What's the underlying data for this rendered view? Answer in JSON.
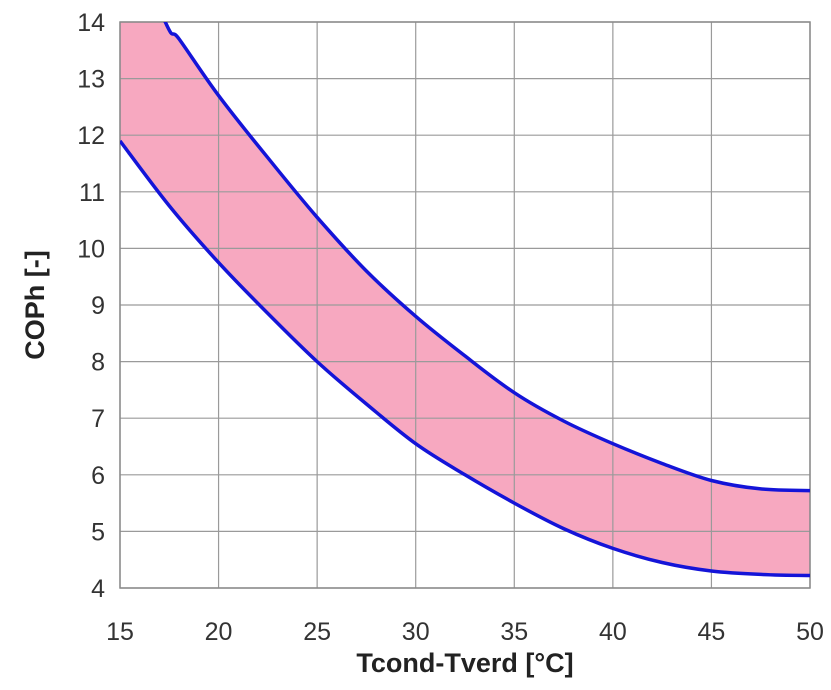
{
  "chart_data": {
    "type": "area",
    "title": "",
    "xlabel": "Tcond-Tverd [°C]",
    "ylabel": "COPh [-]",
    "xlim": [
      15,
      50
    ],
    "ylim": [
      4,
      14
    ],
    "xticks": [
      15,
      20,
      25,
      30,
      35,
      40,
      45,
      50
    ],
    "yticks": [
      4,
      5,
      6,
      7,
      8,
      9,
      10,
      11,
      12,
      13,
      14
    ],
    "grid": true,
    "legend": "none",
    "colors": {
      "band_fill": "#f7a8c0",
      "boundary_line": "#1414d8",
      "grid": "#9a9a9a"
    },
    "series": [
      {
        "x": [
          15,
          17.3,
          18,
          20,
          22.5,
          25,
          27.5,
          30,
          32.5,
          35,
          37.5,
          40,
          42.5,
          45,
          47.5,
          50
        ],
        "values": [
          16.0,
          14.0,
          13.7,
          12.7,
          11.6,
          10.55,
          9.6,
          8.8,
          8.1,
          7.45,
          6.95,
          6.55,
          6.2,
          5.9,
          5.75,
          5.72
        ]
      },
      {
        "x": [
          15,
          17.5,
          20,
          22.5,
          25,
          27.5,
          30,
          32.5,
          35,
          37.5,
          40,
          42.5,
          45,
          47.5,
          50
        ],
        "values": [
          11.9,
          10.75,
          9.75,
          8.85,
          8.0,
          7.25,
          6.55,
          6.0,
          5.5,
          5.05,
          4.7,
          4.45,
          4.3,
          4.24,
          4.22
        ]
      }
    ]
  }
}
